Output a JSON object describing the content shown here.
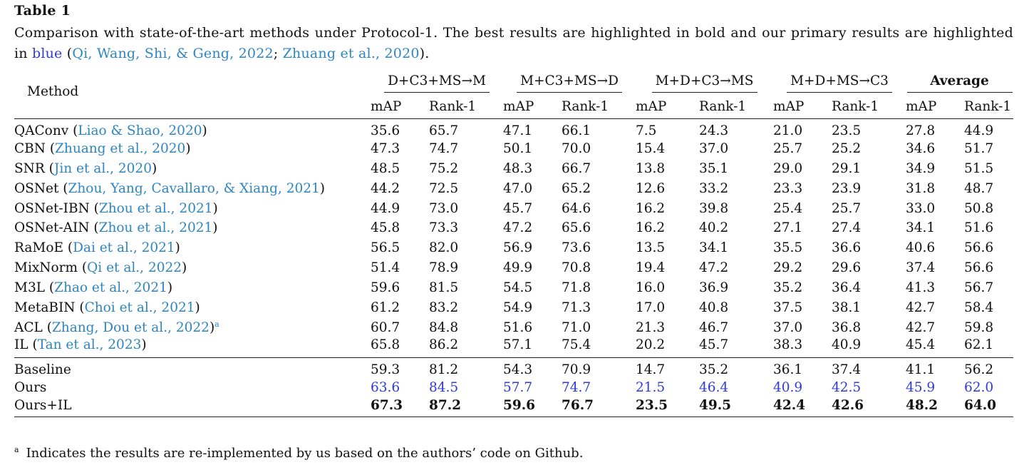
{
  "caption": {
    "label": "Table 1",
    "text_before": "Comparison with state-of-the-art methods under Protocol-1. The best results are highlighted in bold and our primary results are highlighted in ",
    "blue_word": "blue",
    "paren_open": " (",
    "cite1": "Qi, Wang, Shi, & Geng, 2022",
    "sep": "; ",
    "cite2": "Zhuang et al., 2020",
    "paren_close": ")."
  },
  "headers": {
    "method": "Method",
    "groups": [
      "D+C3+MS→M",
      "M+C3+MS→D",
      "M+D+C3→MS",
      "M+D+MS→C3",
      "Average"
    ],
    "sub": [
      "mAP",
      "Rank-1"
    ]
  },
  "rows": [
    {
      "name": "QAConv",
      "cite": "Liao & Shao, 2020",
      "values": [
        "35.6",
        "65.7",
        "47.1",
        "66.1",
        "7.5",
        "24.3",
        "21.0",
        "23.5",
        "27.8",
        "44.9"
      ]
    },
    {
      "name": "CBN",
      "cite": "Zhuang et al., 2020",
      "values": [
        "47.3",
        "74.7",
        "50.1",
        "70.0",
        "15.4",
        "37.0",
        "25.7",
        "25.2",
        "34.6",
        "51.7"
      ]
    },
    {
      "name": "SNR",
      "cite": "Jin et al., 2020",
      "values": [
        "48.5",
        "75.2",
        "48.3",
        "66.7",
        "13.8",
        "35.1",
        "29.0",
        "29.1",
        "34.9",
        "51.5"
      ]
    },
    {
      "name": "OSNet",
      "cite": "Zhou, Yang, Cavallaro, & Xiang, 2021",
      "values": [
        "44.2",
        "72.5",
        "47.0",
        "65.2",
        "12.6",
        "33.2",
        "23.3",
        "23.9",
        "31.8",
        "48.7"
      ]
    },
    {
      "name": "OSNet-IBN",
      "cite": "Zhou et al., 2021",
      "values": [
        "44.9",
        "73.0",
        "45.7",
        "64.6",
        "16.2",
        "39.8",
        "25.4",
        "25.7",
        "33.0",
        "50.8"
      ]
    },
    {
      "name": "OSNet-AIN",
      "cite": "Zhou et al., 2021",
      "values": [
        "45.8",
        "73.3",
        "47.2",
        "65.6",
        "16.2",
        "40.2",
        "27.1",
        "27.4",
        "34.1",
        "51.6"
      ]
    },
    {
      "name": "RaMoE",
      "cite": "Dai et al., 2021",
      "values": [
        "56.5",
        "82.0",
        "56.9",
        "73.6",
        "13.5",
        "34.1",
        "35.5",
        "36.6",
        "40.6",
        "56.6"
      ]
    },
    {
      "name": "MixNorm",
      "cite": "Qi et al., 2022",
      "values": [
        "51.4",
        "78.9",
        "49.9",
        "70.8",
        "19.4",
        "47.2",
        "29.2",
        "29.6",
        "37.4",
        "56.6"
      ]
    },
    {
      "name": "M3L",
      "cite": "Zhao et al., 2021",
      "values": [
        "59.6",
        "81.5",
        "54.5",
        "71.8",
        "16.0",
        "36.9",
        "35.2",
        "36.4",
        "41.3",
        "56.7"
      ]
    },
    {
      "name": "MetaBIN",
      "cite": "Choi et al., 2021",
      "values": [
        "61.2",
        "83.2",
        "54.9",
        "71.3",
        "17.0",
        "40.8",
        "37.5",
        "38.1",
        "42.7",
        "58.4"
      ]
    },
    {
      "name": "ACL",
      "cite": "Zhang, Dou et al., 2022",
      "note": "a",
      "values": [
        "60.7",
        "84.8",
        "51.6",
        "71.0",
        "21.3",
        "46.7",
        "37.0",
        "36.8",
        "42.7",
        "59.8"
      ]
    },
    {
      "name": "IL",
      "cite": "Tan et al., 2023",
      "values": [
        "65.8",
        "86.2",
        "57.1",
        "75.4",
        "20.2",
        "45.7",
        "38.3",
        "40.9",
        "45.4",
        "62.1"
      ]
    }
  ],
  "ours_rows": [
    {
      "name": "Baseline",
      "style": "plain",
      "values": [
        "59.3",
        "81.2",
        "54.3",
        "70.9",
        "14.7",
        "35.2",
        "36.1",
        "37.4",
        "41.1",
        "56.2"
      ]
    },
    {
      "name": "Ours",
      "style": "blue",
      "values": [
        "63.6",
        "84.5",
        "57.7",
        "74.7",
        "21.5",
        "46.4",
        "40.9",
        "42.5",
        "45.9",
        "62.0"
      ]
    },
    {
      "name": "Ours+IL",
      "style": "bold",
      "values": [
        "67.3",
        "87.2",
        "59.6",
        "76.7",
        "23.5",
        "49.5",
        "42.4",
        "42.6",
        "48.2",
        "64.0"
      ]
    }
  ],
  "footnote": {
    "mark": "a",
    "text": "Indicates the results are re-implemented by us based on the authors’ code on Github."
  }
}
